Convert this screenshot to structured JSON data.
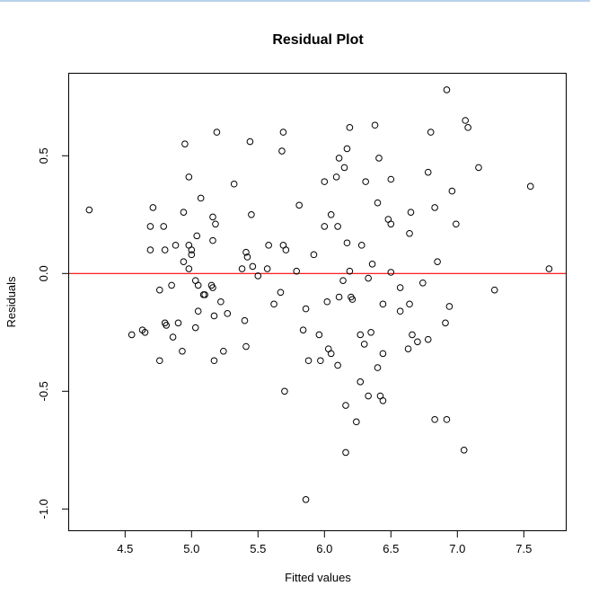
{
  "chart_data": {
    "type": "scatter",
    "title": "Residual Plot",
    "xlabel": "Fitted values",
    "ylabel": "Residuals",
    "xlim": [
      4.07,
      7.81
    ],
    "ylim": [
      -1.08,
      0.85
    ],
    "xticks": [
      "4.5",
      "5.0",
      "5.5",
      "6.0",
      "6.5",
      "7.0",
      "7.5"
    ],
    "xtick_values": [
      4.5,
      5.0,
      5.5,
      6.0,
      6.5,
      7.0,
      7.5
    ],
    "yticks": [
      "-1.0",
      "-0.5",
      "0.0",
      "0.5"
    ],
    "ytick_values": [
      -1.0,
      -0.5,
      0.0,
      0.5
    ],
    "reference_line": {
      "y": 0,
      "color": "#ff0000"
    },
    "grid": false,
    "points": [
      [
        4.23,
        0.27
      ],
      [
        4.69,
        0.2
      ],
      [
        4.71,
        0.28
      ],
      [
        4.69,
        0.1
      ],
      [
        4.79,
        0.2
      ],
      [
        4.8,
        0.1
      ],
      [
        4.88,
        0.12
      ],
      [
        4.95,
        0.55
      ],
      [
        4.94,
        0.26
      ],
      [
        4.98,
        0.41
      ],
      [
        4.98,
        0.12
      ],
      [
        5.0,
        0.1
      ],
      [
        5.0,
        0.08
      ],
      [
        5.04,
        0.16
      ],
      [
        4.94,
        0.05
      ],
      [
        4.98,
        0.02
      ],
      [
        5.07,
        0.32
      ],
      [
        5.19,
        0.6
      ],
      [
        5.16,
        0.24
      ],
      [
        5.18,
        0.21
      ],
      [
        5.16,
        0.14
      ],
      [
        5.32,
        0.38
      ],
      [
        5.44,
        0.56
      ],
      [
        5.45,
        0.25
      ],
      [
        5.38,
        0.02
      ],
      [
        5.41,
        0.09
      ],
      [
        5.42,
        0.07
      ],
      [
        5.46,
        0.03
      ],
      [
        5.5,
        -0.01
      ],
      [
        5.58,
        0.12
      ],
      [
        5.57,
        0.02
      ],
      [
        5.69,
        0.6
      ],
      [
        5.68,
        0.52
      ],
      [
        5.69,
        0.12
      ],
      [
        5.71,
        0.1
      ],
      [
        5.81,
        0.29
      ],
      [
        5.79,
        0.01
      ],
      [
        5.92,
        0.08
      ],
      [
        4.76,
        -0.07
      ],
      [
        4.85,
        -0.05
      ],
      [
        5.03,
        -0.03
      ],
      [
        5.05,
        -0.05
      ],
      [
        5.09,
        -0.09
      ],
      [
        5.1,
        -0.09
      ],
      [
        5.15,
        -0.05
      ],
      [
        5.16,
        -0.06
      ],
      [
        5.22,
        -0.12
      ],
      [
        5.05,
        -0.16
      ],
      [
        5.17,
        -0.18
      ],
      [
        5.27,
        -0.17
      ],
      [
        5.4,
        -0.2
      ],
      [
        4.8,
        -0.21
      ],
      [
        4.81,
        -0.22
      ],
      [
        4.9,
        -0.21
      ],
      [
        5.03,
        -0.23
      ],
      [
        4.63,
        -0.24
      ],
      [
        4.65,
        -0.25
      ],
      [
        4.55,
        -0.26
      ],
      [
        4.86,
        -0.27
      ],
      [
        4.93,
        -0.33
      ],
      [
        5.24,
        -0.33
      ],
      [
        5.41,
        -0.31
      ],
      [
        4.76,
        -0.37
      ],
      [
        5.17,
        -0.37
      ],
      [
        5.62,
        -0.13
      ],
      [
        5.67,
        -0.08
      ],
      [
        5.86,
        -0.15
      ],
      [
        5.84,
        -0.24
      ],
      [
        5.88,
        -0.37
      ],
      [
        5.7,
        -0.5
      ],
      [
        5.86,
        -0.96
      ],
      [
        6.14,
        -0.03
      ],
      [
        6.33,
        -0.02
      ],
      [
        6.02,
        -0.12
      ],
      [
        6.11,
        -0.1
      ],
      [
        6.2,
        -0.1
      ],
      [
        6.21,
        -0.11
      ],
      [
        5.96,
        -0.26
      ],
      [
        6.27,
        -0.26
      ],
      [
        6.35,
        -0.25
      ],
      [
        6.3,
        -0.3
      ],
      [
        6.03,
        -0.32
      ],
      [
        6.05,
        -0.34
      ],
      [
        5.97,
        -0.37
      ],
      [
        6.1,
        -0.39
      ],
      [
        6.44,
        -0.34
      ],
      [
        6.4,
        -0.4
      ],
      [
        6.27,
        -0.46
      ],
      [
        6.33,
        -0.52
      ],
      [
        6.42,
        -0.52
      ],
      [
        6.44,
        -0.54
      ],
      [
        6.16,
        -0.56
      ],
      [
        6.24,
        -0.63
      ],
      [
        6.16,
        -0.76
      ],
      [
        6.57,
        -0.06
      ],
      [
        6.74,
        -0.04
      ],
      [
        6.44,
        -0.13
      ],
      [
        6.57,
        -0.16
      ],
      [
        6.64,
        -0.13
      ],
      [
        6.94,
        -0.14
      ],
      [
        6.91,
        -0.21
      ],
      [
        6.66,
        -0.26
      ],
      [
        6.78,
        -0.28
      ],
      [
        6.7,
        -0.29
      ],
      [
        6.63,
        -0.32
      ],
      [
        6.83,
        -0.62
      ],
      [
        6.92,
        -0.62
      ],
      [
        7.05,
        -0.75
      ],
      [
        7.28,
        -0.07
      ],
      [
        7.69,
        0.02
      ],
      [
        6.19,
        0.01
      ],
      [
        6.5,
        0.005
      ],
      [
        6.92,
        0.78
      ],
      [
        7.06,
        0.65
      ],
      [
        7.08,
        0.62
      ],
      [
        6.19,
        0.62
      ],
      [
        6.38,
        0.63
      ],
      [
        6.8,
        0.6
      ],
      [
        6.17,
        0.53
      ],
      [
        6.11,
        0.49
      ],
      [
        6.41,
        0.49
      ],
      [
        6.15,
        0.45
      ],
      [
        7.16,
        0.45
      ],
      [
        6.0,
        0.39
      ],
      [
        6.09,
        0.41
      ],
      [
        6.31,
        0.39
      ],
      [
        6.5,
        0.4
      ],
      [
        6.78,
        0.43
      ],
      [
        7.55,
        0.37
      ],
      [
        6.96,
        0.35
      ],
      [
        6.4,
        0.3
      ],
      [
        6.83,
        0.28
      ],
      [
        6.05,
        0.25
      ],
      [
        6.65,
        0.26
      ],
      [
        6.48,
        0.23
      ],
      [
        6.5,
        0.21
      ],
      [
        6.0,
        0.2
      ],
      [
        6.1,
        0.2
      ],
      [
        6.99,
        0.21
      ],
      [
        6.64,
        0.17
      ],
      [
        6.17,
        0.13
      ],
      [
        6.28,
        0.12
      ],
      [
        6.36,
        0.04
      ],
      [
        6.85,
        0.05
      ]
    ]
  }
}
